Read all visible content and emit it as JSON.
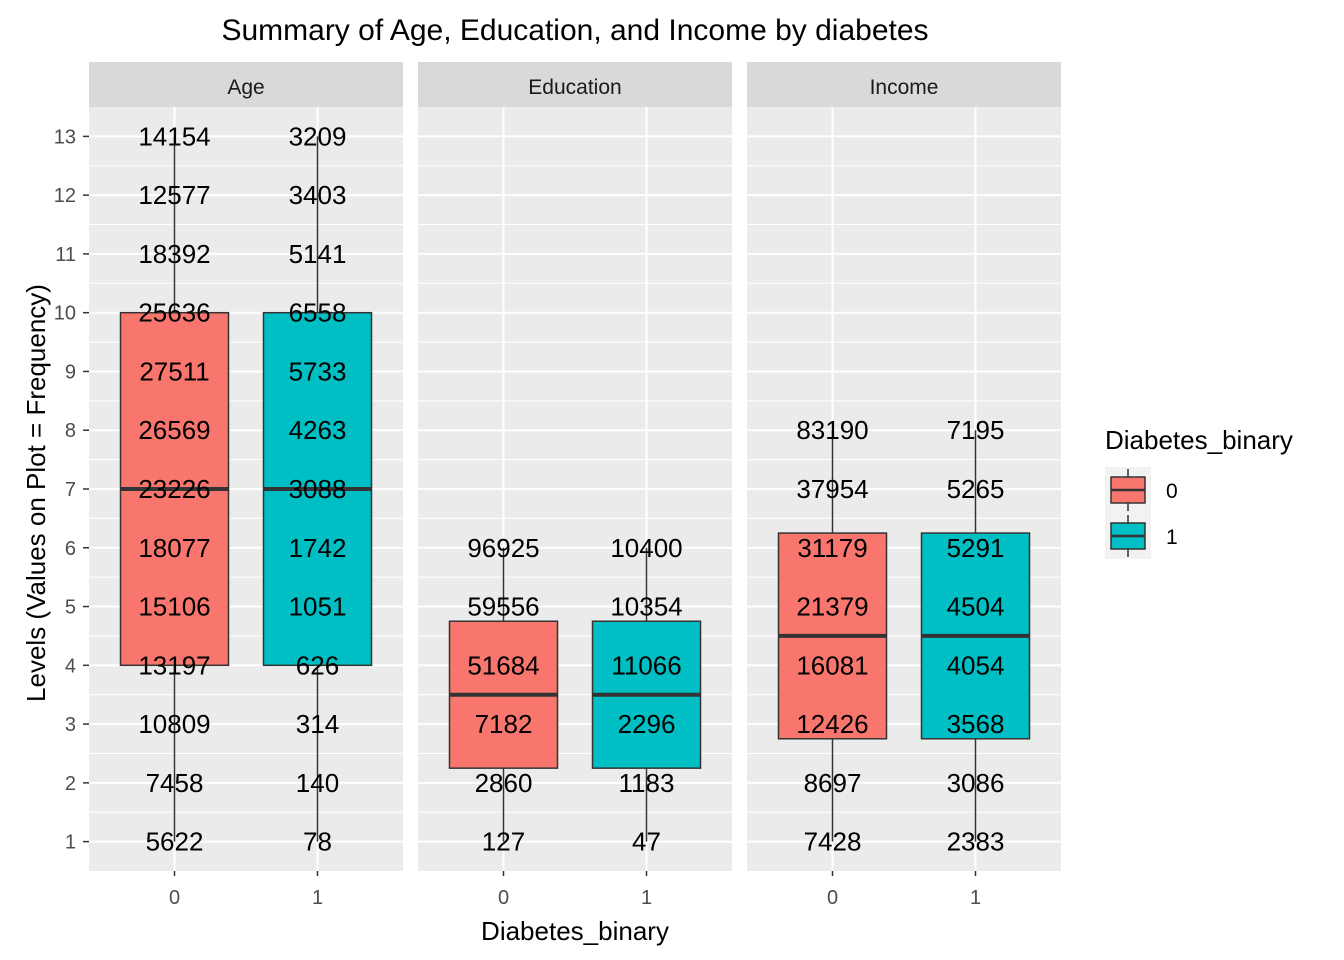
{
  "chart_data": {
    "type": "boxplot",
    "title": "Summary of Age, Education, and Income by diabetes",
    "xlabel": "Diabetes_binary",
    "ylabel": "Levels (Values on Plot = Frequency)",
    "ylim": [
      0.5,
      13.5
    ],
    "y_ticks": [
      1,
      2,
      3,
      4,
      5,
      6,
      7,
      8,
      9,
      10,
      11,
      12,
      13
    ],
    "categories": [
      "0",
      "1"
    ],
    "legend": {
      "title": "Diabetes_binary",
      "position": "right",
      "entries": [
        {
          "label": "0",
          "color": "#F8766D"
        },
        {
          "label": "1",
          "color": "#00BFC4"
        }
      ]
    },
    "grid": true,
    "panel_background": "#EBEBEB",
    "strip_background": "#D9D9D9",
    "facets": [
      {
        "name": "Age",
        "boxes": [
          {
            "group": "0",
            "min": 1,
            "q1": 4,
            "median": 7,
            "q3": 10,
            "max": 13,
            "levels": [
              1,
              2,
              3,
              4,
              5,
              6,
              7,
              8,
              9,
              10,
              11,
              12,
              13
            ],
            "counts": [
              5622,
              7458,
              10809,
              13197,
              15106,
              18077,
              23226,
              26569,
              27511,
              25636,
              18392,
              12577,
              14154
            ]
          },
          {
            "group": "1",
            "min": 1,
            "q1": 4,
            "median": 7,
            "q3": 10,
            "max": 13,
            "levels": [
              1,
              2,
              3,
              4,
              5,
              6,
              7,
              8,
              9,
              10,
              11,
              12,
              13
            ],
            "counts": [
              78,
              140,
              314,
              626,
              1051,
              1742,
              3088,
              4263,
              5733,
              6558,
              5141,
              3403,
              3209
            ]
          }
        ]
      },
      {
        "name": "Education",
        "boxes": [
          {
            "group": "0",
            "min": 1,
            "q1": 2.25,
            "median": 3.5,
            "q3": 4.75,
            "max": 6,
            "levels": [
              1,
              2,
              3,
              4,
              5,
              6
            ],
            "counts": [
              127,
              2860,
              7182,
              51684,
              59556,
              96925
            ]
          },
          {
            "group": "1",
            "min": 1,
            "q1": 2.25,
            "median": 3.5,
            "q3": 4.75,
            "max": 6,
            "levels": [
              1,
              2,
              3,
              4,
              5,
              6
            ],
            "counts": [
              47,
              1183,
              2296,
              11066,
              10354,
              10400
            ]
          }
        ]
      },
      {
        "name": "Income",
        "boxes": [
          {
            "group": "0",
            "min": 1,
            "q1": 2.75,
            "median": 4.5,
            "q3": 6.25,
            "max": 8,
            "levels": [
              1,
              2,
              3,
              4,
              5,
              6,
              7,
              8
            ],
            "counts": [
              7428,
              8697,
              12426,
              16081,
              21379,
              31179,
              37954,
              83190
            ]
          },
          {
            "group": "1",
            "min": 1,
            "q1": 2.75,
            "median": 4.5,
            "q3": 6.25,
            "max": 8,
            "levels": [
              1,
              2,
              3,
              4,
              5,
              6,
              7,
              8
            ],
            "counts": [
              2383,
              3086,
              3568,
              4054,
              4504,
              5291,
              5265,
              7195
            ]
          }
        ]
      }
    ]
  }
}
